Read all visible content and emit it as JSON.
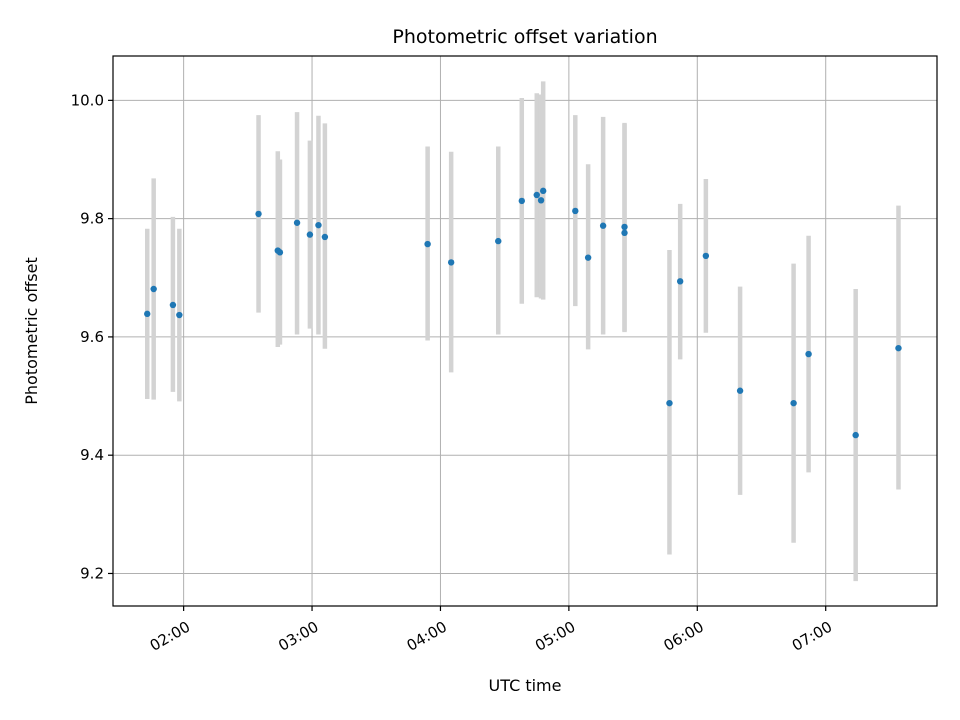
{
  "chart_data": {
    "type": "scatter",
    "title": "Photometric offset variation",
    "xlabel": "UTC time",
    "ylabel": "Photometric offset",
    "xlim": [
      "01:27",
      "07:52"
    ],
    "ylim": [
      9.145,
      10.075
    ],
    "x_ticks": [
      "02:00",
      "03:00",
      "04:00",
      "05:00",
      "06:00",
      "07:00"
    ],
    "y_ticks": [
      9.2,
      9.4,
      9.6,
      9.8,
      10.0
    ],
    "y_tick_labels": [
      "9.2",
      "9.4",
      "9.6",
      "9.8",
      "10.0"
    ],
    "grid": true,
    "colors": {
      "point": "#1f77b4",
      "errorbar": "#d3d3d3",
      "grid": "#b0b0b0",
      "axes": "#000000"
    },
    "series": [
      {
        "points": [
          {
            "x": "01:43",
            "y": 9.639,
            "lo": 9.495,
            "hi": 9.783
          },
          {
            "x": "01:46",
            "y": 9.681,
            "lo": 9.494,
            "hi": 9.868
          },
          {
            "x": "01:55",
            "y": 9.654,
            "lo": 9.507,
            "hi": 9.803
          },
          {
            "x": "01:58",
            "y": 9.637,
            "lo": 9.491,
            "hi": 9.783
          },
          {
            "x": "02:35",
            "y": 9.808,
            "lo": 9.641,
            "hi": 9.975
          },
          {
            "x": "02:44",
            "y": 9.746,
            "lo": 9.583,
            "hi": 9.914
          },
          {
            "x": "02:45",
            "y": 9.743,
            "lo": 9.587,
            "hi": 9.9
          },
          {
            "x": "02:53",
            "y": 9.793,
            "lo": 9.604,
            "hi": 9.98
          },
          {
            "x": "02:59",
            "y": 9.773,
            "lo": 9.614,
            "hi": 9.932
          },
          {
            "x": "03:03",
            "y": 9.789,
            "lo": 9.604,
            "hi": 9.974
          },
          {
            "x": "03:06",
            "y": 9.769,
            "lo": 9.58,
            "hi": 9.961
          },
          {
            "x": "03:54",
            "y": 9.757,
            "lo": 9.594,
            "hi": 9.922
          },
          {
            "x": "04:05",
            "y": 9.726,
            "lo": 9.54,
            "hi": 9.913
          },
          {
            "x": "04:27",
            "y": 9.762,
            "lo": 9.604,
            "hi": 9.922
          },
          {
            "x": "04:38",
            "y": 9.83,
            "lo": 9.656,
            "hi": 10.004
          },
          {
            "x": "04:45",
            "y": 9.84,
            "lo": 9.667,
            "hi": 10.012
          },
          {
            "x": "04:47",
            "y": 9.831,
            "lo": 9.665,
            "hi": 10.01
          },
          {
            "x": "04:48",
            "y": 9.847,
            "lo": 9.663,
            "hi": 10.032
          },
          {
            "x": "05:03",
            "y": 9.813,
            "lo": 9.652,
            "hi": 9.975
          },
          {
            "x": "05:09",
            "y": 9.734,
            "lo": 9.579,
            "hi": 9.892
          },
          {
            "x": "05:16",
            "y": 9.788,
            "lo": 9.604,
            "hi": 9.972
          },
          {
            "x": "05:26",
            "y": 9.786,
            "lo": 9.608,
            "hi": 9.962
          },
          {
            "x": "05:26",
            "y": 9.776,
            "lo": 9.61,
            "hi": 9.96
          },
          {
            "x": "05:47",
            "y": 9.488,
            "lo": 9.232,
            "hi": 9.747
          },
          {
            "x": "05:52",
            "y": 9.694,
            "lo": 9.562,
            "hi": 9.825
          },
          {
            "x": "06:04",
            "y": 9.737,
            "lo": 9.607,
            "hi": 9.867
          },
          {
            "x": "06:20",
            "y": 9.509,
            "lo": 9.333,
            "hi": 9.685
          },
          {
            "x": "06:45",
            "y": 9.488,
            "lo": 9.252,
            "hi": 9.724
          },
          {
            "x": "06:52",
            "y": 9.571,
            "lo": 9.371,
            "hi": 9.771
          },
          {
            "x": "07:14",
            "y": 9.434,
            "lo": 9.187,
            "hi": 9.681
          },
          {
            "x": "07:34",
            "y": 9.581,
            "lo": 9.342,
            "hi": 9.822
          }
        ]
      }
    ]
  }
}
